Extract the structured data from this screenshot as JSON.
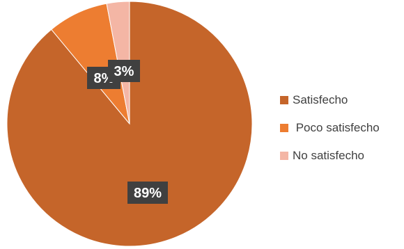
{
  "chart_data": {
    "type": "pie",
    "categories": [
      "Satisfecho",
      "Poco satisfecho",
      "No satisfecho"
    ],
    "values": [
      89,
      8,
      3
    ],
    "data_labels": [
      "89%",
      "8%",
      "3%"
    ],
    "colors": [
      "#C5652A",
      "#ED7D31",
      "#F4B6A5"
    ],
    "legend_labels": [
      "Satisfecho",
      " Poco satisfecho",
      "No satisfecho"
    ],
    "legend_placement": "right",
    "start_angle": "top",
    "direction": "clockwise"
  }
}
